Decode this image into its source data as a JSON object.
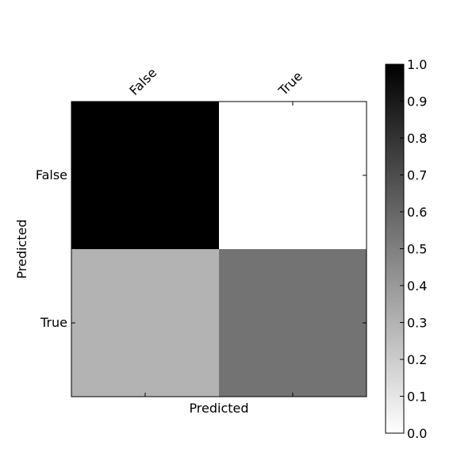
{
  "chart_data": {
    "type": "heatmap",
    "title": "",
    "x_categories": [
      "False",
      "True"
    ],
    "y_categories": [
      "False",
      "True"
    ],
    "values": [
      [
        1.0,
        0.0
      ],
      [
        0.3,
        0.55
      ]
    ],
    "xlabel": "Predicted",
    "ylabel": "Predicted",
    "colormap": "gray_r",
    "vmin": 0.0,
    "vmax": 1.0,
    "colorbar_ticks": [
      "0.0",
      "0.1",
      "0.2",
      "0.3",
      "0.4",
      "0.5",
      "0.6",
      "0.7",
      "0.8",
      "0.9",
      "1.0"
    ],
    "x_ticks_position": "top",
    "x_tick_rotation_deg": 45,
    "grid": false,
    "colorbar_position": "right"
  }
}
